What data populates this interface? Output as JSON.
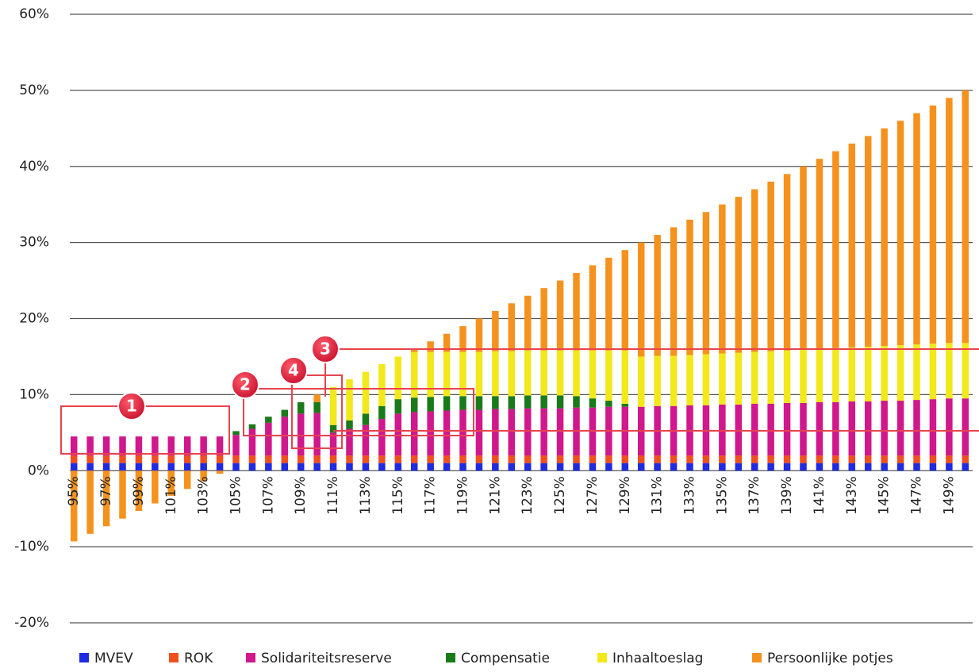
{
  "chart_data": {
    "type": "stacked-bar",
    "categories": [
      "95%",
      null,
      "97%",
      null,
      "99%",
      null,
      "101%",
      null,
      "103%",
      null,
      "105%",
      null,
      "107%",
      null,
      "109%",
      null,
      "111%",
      null,
      "113%",
      null,
      "115%",
      null,
      "117%",
      null,
      "119%",
      null,
      "121%",
      null,
      "123%",
      null,
      "125%",
      null,
      "127%",
      null,
      "129%",
      null,
      "131%",
      null,
      "133%",
      null,
      "135%",
      null,
      "137%",
      null,
      "139%",
      null,
      "141%",
      null,
      "143%",
      null,
      "145%",
      null,
      "147%",
      null,
      "149%",
      null
    ],
    "series": [
      {
        "name": "MVEV",
        "color": "#1f2be0",
        "values": [
          1,
          1,
          1,
          1,
          1,
          1,
          1,
          1,
          1,
          1,
          1,
          1,
          1,
          1,
          1,
          1,
          1,
          1,
          1,
          1,
          1,
          1,
          1,
          1,
          1,
          1,
          1,
          1,
          1,
          1,
          1,
          1,
          1,
          1,
          1,
          1,
          1,
          1,
          1,
          1,
          1,
          1,
          1,
          1,
          1,
          1,
          1,
          1,
          1,
          1,
          1,
          1,
          1,
          1,
          1,
          1
        ]
      },
      {
        "name": "ROK",
        "color": "#f0501e",
        "values": [
          1,
          1,
          1,
          1,
          1,
          1,
          1,
          1,
          1,
          1,
          1,
          1,
          1,
          1,
          1,
          1,
          1,
          1,
          1,
          1,
          1,
          1,
          1,
          1,
          1,
          1,
          1,
          1,
          1,
          1,
          1,
          1,
          1,
          1,
          1,
          1,
          1,
          1,
          1,
          1,
          1,
          1,
          1,
          1,
          1,
          1,
          1,
          1,
          1,
          1,
          1,
          1,
          1,
          1,
          1,
          1
        ]
      },
      {
        "name": "Solidariteitsreserve",
        "color": "#d0178c",
        "values": [
          2.5,
          2.5,
          2.5,
          2.5,
          2.5,
          2.5,
          2.5,
          2.5,
          2.5,
          2.5,
          2.7,
          3.5,
          4.3,
          5.1,
          5.5,
          5.6,
          3.0,
          3.5,
          4.0,
          4.8,
          5.5,
          5.7,
          5.8,
          5.9,
          6.0,
          6.0,
          6.1,
          6.1,
          6.2,
          6.2,
          6.2,
          6.3,
          6.3,
          6.4,
          6.4,
          6.4,
          6.5,
          6.5,
          6.6,
          6.6,
          6.7,
          6.7,
          6.8,
          6.8,
          6.9,
          6.9,
          7.0,
          7.0,
          7.1,
          7.1,
          7.2,
          7.2,
          7.3,
          7.4,
          7.5,
          7.5
        ]
      },
      {
        "name": "Compensatie",
        "color": "#1a7a1a",
        "values": [
          0,
          0,
          0,
          0,
          0,
          0,
          0,
          0,
          0,
          0,
          0.5,
          0.6,
          0.8,
          0.9,
          1.5,
          1.4,
          1.0,
          1.1,
          1.5,
          1.7,
          1.9,
          1.9,
          1.9,
          1.9,
          1.8,
          1.8,
          1.7,
          1.7,
          1.7,
          1.7,
          1.7,
          1.5,
          1.2,
          0.8,
          0.4,
          0,
          0,
          0,
          0,
          0,
          0,
          0,
          0,
          0,
          0,
          0,
          0,
          0,
          0,
          0,
          0,
          0,
          0,
          0,
          0,
          0
        ]
      },
      {
        "name": "Inhaaltoeslag",
        "color": "#f2e81a",
        "values": [
          0,
          0,
          0,
          0,
          0,
          0,
          0,
          0,
          0,
          0,
          0,
          0,
          0,
          0,
          0,
          0,
          5.0,
          5.4,
          5.5,
          5.5,
          5.6,
          6.0,
          5.9,
          5.8,
          5.8,
          5.8,
          5.9,
          5.9,
          5.9,
          5.9,
          5.9,
          6.0,
          6.3,
          6.6,
          7.0,
          6.6,
          6.6,
          6.6,
          6.6,
          6.7,
          6.7,
          6.8,
          6.8,
          6.9,
          6.9,
          7.0,
          7.0,
          7.1,
          7.1,
          7.2,
          7.2,
          7.3,
          7.3,
          7.3,
          7.3,
          7.3
        ]
      },
      {
        "name": "Persoonlijke potjes",
        "color": "#f5921e",
        "values": [
          -9.3,
          -8.3,
          -7.3,
          -6.3,
          -5.3,
          -4.3,
          -3.3,
          -2.4,
          -1.4,
          -0.4,
          0,
          0,
          0,
          0,
          0,
          1.0,
          0,
          0,
          0,
          0,
          0,
          0.4,
          1.4,
          2.4,
          3.4,
          4.4,
          5.3,
          6.3,
          7.2,
          8.2,
          9.2,
          10.2,
          11.2,
          12.2,
          13.2,
          15.0,
          15.9,
          16.9,
          17.8,
          18.7,
          19.6,
          20.5,
          21.4,
          22.3,
          23.2,
          24.1,
          25.0,
          25.9,
          26.8,
          27.7,
          28.6,
          29.5,
          30.4,
          31.3,
          32.2,
          33.2
        ]
      }
    ],
    "ylim": [
      -20,
      60
    ],
    "yticks": [
      {
        "value": -20,
        "label": "-20%"
      },
      {
        "value": -10,
        "label": "-10%"
      },
      {
        "value": 0,
        "label": "0%"
      },
      {
        "value": 10,
        "label": "10%"
      },
      {
        "value": 20,
        "label": "20%"
      },
      {
        "value": 30,
        "label": "30%"
      },
      {
        "value": 40,
        "label": "40%"
      },
      {
        "value": 50,
        "label": "50%"
      },
      {
        "value": 60,
        "label": "60%"
      }
    ],
    "grid": true,
    "legend": "bottom",
    "annotations": [
      "1",
      "2",
      "3",
      "4"
    ]
  }
}
